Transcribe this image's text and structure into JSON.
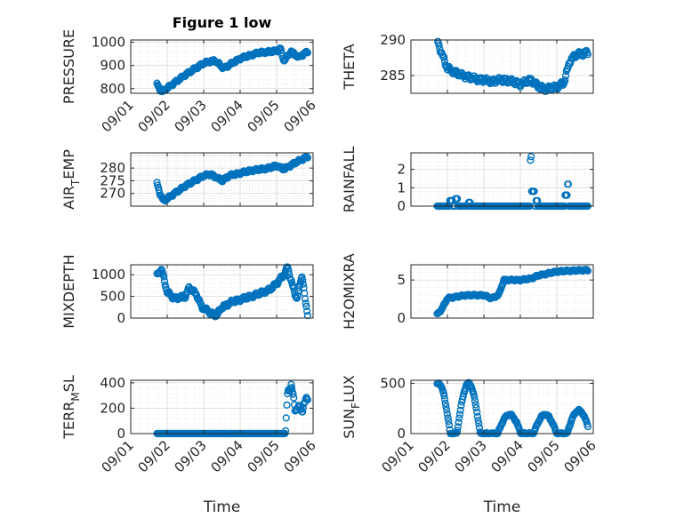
{
  "colors": {
    "marker": "#0072BD",
    "axis": "#262626",
    "grid": "#d9d9d9"
  },
  "chart_data": [
    {
      "type": "scatter",
      "id": "pressure",
      "title": "Figure 1 low",
      "ylabel": "PRESSURE",
      "ylim": [
        780,
        1010
      ],
      "yticks": [
        800,
        900,
        1000
      ],
      "x": [
        "09/01",
        "09/02",
        "09/03",
        "09/04",
        "09/05",
        "09/06"
      ],
      "xlim": [
        0,
        5
      ],
      "xlabel": "",
      "grid": true,
      "marker": "o",
      "gen": "pressure",
      "series": [
        {
          "values": []
        }
      ]
    },
    {
      "type": "scatter",
      "id": "theta",
      "title": "",
      "ylabel": "THETA",
      "ylim": [
        282.5,
        290
      ],
      "yticks": [
        285,
        290
      ],
      "xlim": [
        0,
        5
      ],
      "xlabel": "",
      "grid": true,
      "marker": "o",
      "gen": "theta",
      "series": [
        {
          "values": []
        }
      ]
    },
    {
      "type": "scatter",
      "id": "air_temp",
      "title": "",
      "ylabel_main": "AIR",
      "ylabel_sub": "T",
      "ylabel_tail": "EMP",
      "ylim": [
        265,
        286
      ],
      "yticks": [
        270,
        275,
        280
      ],
      "xlim": [
        0,
        5
      ],
      "xlabel": "",
      "grid": true,
      "marker": "o",
      "gen": "airtemp",
      "series": [
        {
          "values": []
        }
      ]
    },
    {
      "type": "scatter",
      "id": "rainfall",
      "title": "",
      "ylabel": "RAINFALL",
      "ylim": [
        0,
        2.9
      ],
      "yticks": [
        0,
        1,
        2
      ],
      "xlim": [
        0,
        5
      ],
      "xlabel": "",
      "grid": true,
      "marker": "o",
      "gen": "rain",
      "series": [
        {
          "values": []
        }
      ]
    },
    {
      "type": "scatter",
      "id": "mixdepth",
      "title": "",
      "ylabel": "MIXDEPTH",
      "ylim": [
        0,
        1230
      ],
      "yticks": [
        0,
        500,
        1000
      ],
      "xlim": [
        0,
        5
      ],
      "xlabel": "",
      "grid": true,
      "marker": "o",
      "gen": "mixdepth",
      "series": [
        {
          "values": []
        }
      ]
    },
    {
      "type": "scatter",
      "id": "h2omixra",
      "title": "",
      "ylabel": "H2OMIXRA",
      "ylim": [
        0,
        7
      ],
      "yticks": [
        0,
        5
      ],
      "xlim": [
        0,
        5
      ],
      "xlabel": "",
      "grid": true,
      "marker": "o",
      "gen": "h2o",
      "series": [
        {
          "values": []
        }
      ]
    },
    {
      "type": "scatter",
      "id": "terr_msl",
      "title": "",
      "ylabel_main": "TERR",
      "ylabel_sub": "M",
      "ylabel_tail": "SL",
      "ylim": [
        0,
        420
      ],
      "yticks": [
        0,
        200,
        400
      ],
      "x": [
        "09/01",
        "09/02",
        "09/03",
        "09/04",
        "09/05",
        "09/06"
      ],
      "xlim": [
        0,
        5
      ],
      "xlabel": "Time",
      "grid": true,
      "marker": "o",
      "gen": "terr",
      "series": [
        {
          "values": []
        }
      ]
    },
    {
      "type": "scatter",
      "id": "sun_flux",
      "title": "",
      "ylabel_main": "SUN",
      "ylabel_sub": "F",
      "ylabel_tail": "LUX",
      "ylim": [
        0,
        530
      ],
      "yticks": [
        0,
        500
      ],
      "x": [
        "09/01",
        "09/02",
        "09/03",
        "09/04",
        "09/05",
        "09/06"
      ],
      "xlim": [
        0,
        5
      ],
      "xlabel": "Time",
      "grid": true,
      "marker": "o",
      "gen": "sun",
      "series": [
        {
          "values": []
        }
      ]
    }
  ]
}
